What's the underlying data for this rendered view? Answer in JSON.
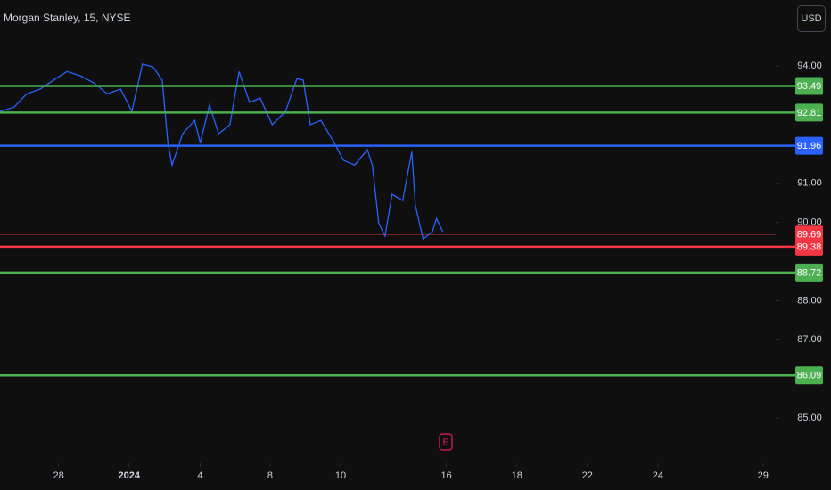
{
  "chart_data": {
    "type": "line",
    "title": "Morgan Stanley, 15, NYSE",
    "currency": "USD",
    "xlim": [
      0,
      110
    ],
    "ylim": [
      83.84,
      95.69
    ],
    "xticks": [
      {
        "value": 8.3,
        "label": "28"
      },
      {
        "value": 18.3,
        "label": "2024"
      },
      {
        "value": 28.4,
        "label": "4"
      },
      {
        "value": 38.3,
        "label": "8"
      },
      {
        "value": 48.3,
        "label": "10"
      },
      {
        "value": 63.3,
        "label": "16"
      },
      {
        "value": 73.3,
        "label": "18"
      },
      {
        "value": 83.3,
        "label": "22"
      },
      {
        "value": 93.3,
        "label": "24"
      },
      {
        "value": 108.2,
        "label": "29"
      }
    ],
    "yticks": [
      {
        "value": 94,
        "label": "94.00"
      },
      {
        "value": 91,
        "label": "91.00"
      },
      {
        "value": 90,
        "label": "90.00"
      },
      {
        "value": 88,
        "label": "88.00"
      },
      {
        "value": 87,
        "label": "87.00"
      },
      {
        "value": 85,
        "label": "85.00"
      }
    ],
    "x": [
      0,
      2,
      3.8,
      5.7,
      7.6,
      9.5,
      11.4,
      13.3,
      15.2,
      17.1,
      18.7,
      20.2,
      21.7,
      23,
      23.8,
      24.4,
      25.9,
      27.6,
      28.4,
      29.7,
      31,
      32.6,
      33.9,
      35.4,
      36.9,
      38.6,
      40.5,
      42.1,
      43,
      44,
      45.5,
      47.4,
      48.7,
      50.3,
      52.1,
      52.8,
      53.7,
      54.6,
      55.6,
      57.1,
      58.4,
      58.9,
      60,
      61.3,
      61.9,
      62.8
    ],
    "series": [
      {
        "color": "#2962ff",
        "values": [
          92.84,
          92.95,
          93.29,
          93.41,
          93.64,
          93.86,
          93.75,
          93.57,
          93.29,
          93.41,
          92.84,
          94.05,
          93.98,
          93.64,
          92.04,
          91.47,
          92.27,
          92.61,
          92.04,
          93.0,
          92.27,
          92.5,
          93.86,
          93.07,
          93.18,
          92.5,
          92.84,
          93.68,
          93.64,
          92.5,
          92.61,
          92.04,
          91.59,
          91.47,
          91.86,
          91.47,
          89.99,
          89.65,
          90.72,
          90.56,
          91.81,
          90.44,
          89.58,
          89.76,
          90.1,
          89.76
        ]
      }
    ],
    "levels": [
      {
        "value": 93.49,
        "color": "#4caf50"
      },
      {
        "value": 92.81,
        "color": "#4caf50"
      },
      {
        "value": 91.96,
        "color": "#2962ff"
      },
      {
        "value": 89.38,
        "color": "#f23645"
      },
      {
        "value": 88.72,
        "color": "#4caf50"
      },
      {
        "value": 86.09,
        "color": "#4caf50"
      }
    ],
    "last_price": {
      "value": 89.69,
      "color": "#f23645"
    }
  }
}
